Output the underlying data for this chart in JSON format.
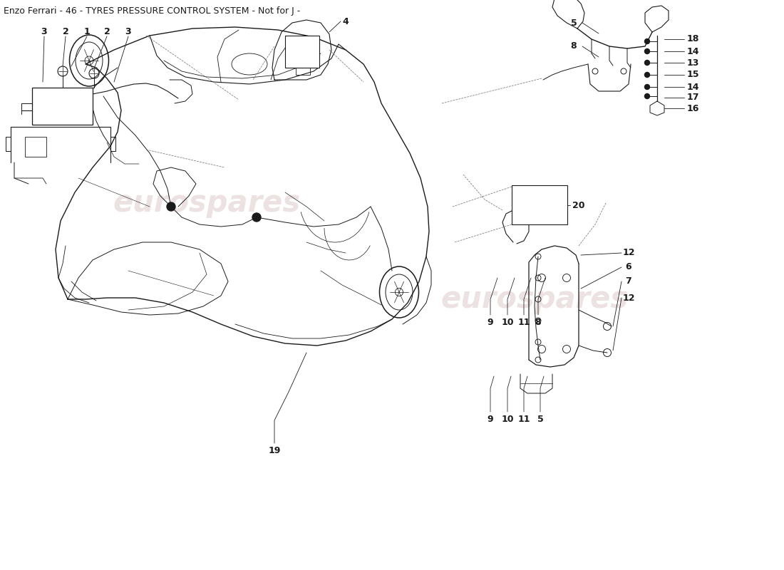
{
  "title": "Enzo Ferrari - 46 - TYRES PRESSURE CONTROL SYSTEM - Not for J -",
  "title_fontsize": 9,
  "background_color": "#ffffff",
  "line_color": "#1a1a1a",
  "watermark_text": "eurospares",
  "watermark_color": "#d4b8b8",
  "watermark_alpha": 0.4,
  "fig_width": 11.0,
  "fig_height": 8.0,
  "dpi": 100,
  "car_color": "#333333",
  "label_fontsize": 9,
  "label_fontweight": "bold"
}
